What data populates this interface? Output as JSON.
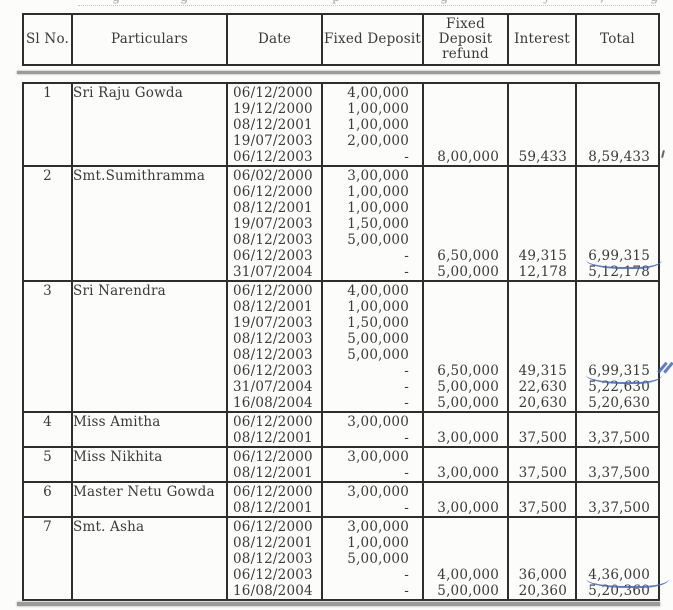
{
  "page": {
    "description_title": "Fixed deposit statement table (scanned document)",
    "top_fragments": [
      "g",
      "g",
      "p",
      "g",
      "y",
      ",",
      "g"
    ]
  },
  "colors": {
    "background": "#fcfcfb",
    "table_border": "#2e2e2e",
    "text": "#3a3a3a",
    "scan_band_gray": "#9b9b99",
    "pen_blue": "#4265c1"
  },
  "table": {
    "headers": [
      "Sl No.",
      "Particulars",
      "Date",
      "Fixed Deposit",
      "Fixed Deposit refund",
      "Interest",
      "Total"
    ],
    "rows": [
      {
        "sl": "1",
        "name": "Sri Raju Gowda",
        "lines": [
          {
            "d": "06/12/2000",
            "fd": "4,00,000"
          },
          {
            "d": "19/12/2000",
            "fd": "1,00,000"
          },
          {
            "d": "08/12/2001",
            "fd": "1,00,000"
          },
          {
            "d": "19/07/2003",
            "fd": "2,00,000"
          },
          {
            "d": "06/12/2003",
            "fd": "-",
            "rf": "8,00,000",
            "in": "59,433",
            "tt": "8,59,433"
          }
        ]
      },
      {
        "sl": "2",
        "name": "Smt.Sumithramma",
        "lines": [
          {
            "d": "06/02/2000",
            "fd": "3,00,000"
          },
          {
            "d": "06/12/2000",
            "fd": "1,00,000"
          },
          {
            "d": "08/12/2001",
            "fd": "1,00,000"
          },
          {
            "d": "19/07/2003",
            "fd": "1,50,000"
          },
          {
            "d": "08/12/2003",
            "fd": "5,00,000"
          },
          {
            "d": "06/12/2003",
            "fd": "-",
            "rf": "6,50,000",
            "in": "49,315",
            "tt": "6,99,315",
            "mark": "underline"
          },
          {
            "d": "31/07/2004",
            "fd": "-",
            "rf": "5,00,000",
            "in": "12,178",
            "tt": "5,12,178"
          }
        ]
      },
      {
        "sl": "3",
        "name": "Sri Narendra",
        "lines": [
          {
            "d": "06/12/2000",
            "fd": "4,00,000"
          },
          {
            "d": "08/12/2001",
            "fd": "1,00,000"
          },
          {
            "d": "19/07/2003",
            "fd": "1,50,000"
          },
          {
            "d": "08/12/2003",
            "fd": "5,00,000"
          },
          {
            "d": "08/12/2003",
            "fd": "5,00,000"
          },
          {
            "d": "06/12/2003",
            "fd": "-",
            "rf": "6,50,000",
            "in": "49,315",
            "tt": "6,99,315",
            "mark": "underline-tick"
          },
          {
            "d": "31/07/2004",
            "fd": "-",
            "rf": "5,00,000",
            "in": "22,630",
            "tt": "5,22,630"
          },
          {
            "d": "16/08/2004",
            "fd": "-",
            "rf": "5,00,000",
            "in": "20,630",
            "tt": "5,20,630"
          }
        ]
      },
      {
        "sl": "4",
        "name": "Miss Amitha",
        "lines": [
          {
            "d": "06/12/2000",
            "fd": "3,00,000"
          },
          {
            "d": "08/12/2001",
            "fd": "-",
            "rf": "3,00,000",
            "in": "37,500",
            "tt": "3,37,500"
          }
        ]
      },
      {
        "sl": "5",
        "name": "Miss Nikhita",
        "lines": [
          {
            "d": "06/12/2000",
            "fd": "3,00,000"
          },
          {
            "d": "08/12/2001",
            "fd": "-",
            "rf": "3,00,000",
            "in": "37,500",
            "tt": "3,37,500"
          }
        ]
      },
      {
        "sl": "6",
        "name": "Master Netu Gowda",
        "lines": [
          {
            "d": "06/12/2000",
            "fd": "3,00,000"
          },
          {
            "d": "08/12/2001",
            "fd": "-",
            "rf": "3,00,000",
            "in": "37,500",
            "tt": "3,37,500"
          }
        ]
      },
      {
        "sl": "7",
        "name": "Smt. Asha",
        "lines": [
          {
            "d": "06/12/2000",
            "fd": "3,00,000"
          },
          {
            "d": "08/12/2001",
            "fd": "1,00,000"
          },
          {
            "d": "08/12/2003",
            "fd": "5,00,000"
          },
          {
            "d": "06/12/2003",
            "fd": "-",
            "rf": "4,00,000",
            "in": "36,000",
            "tt": "4,36,000",
            "mark": "underline-long"
          },
          {
            "d": "16/08/2004",
            "fd": "-",
            "rf": "5,00,000",
            "in": "20,360",
            "tt": "5,20,360"
          }
        ]
      }
    ]
  },
  "annotations": {
    "pen_marks": [
      {
        "type": "pen-underline",
        "target": "row 2 total 6,99,315"
      },
      {
        "type": "pen-underline-with-double-tick",
        "target": "row 3 total 6,99,315"
      },
      {
        "type": "pen-underline",
        "target": "row 7 total 4,36,000"
      },
      {
        "type": "ink-speck",
        "target": "right of row 1 total 8,59,433"
      }
    ]
  }
}
